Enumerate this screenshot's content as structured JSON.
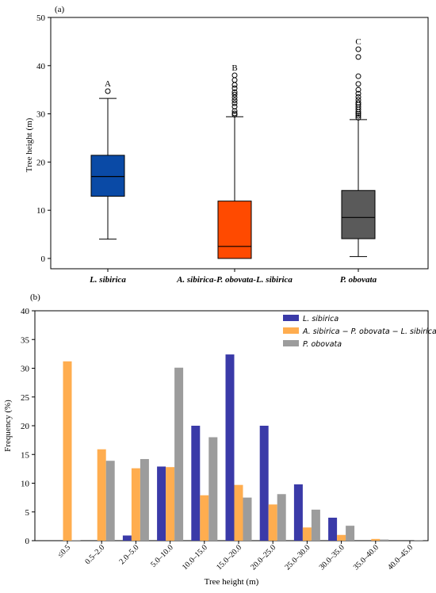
{
  "chart_data": [
    {
      "type": "box",
      "panel_label": "(a)",
      "ylabel": "Tree height (m)",
      "ylim": [
        0,
        50
      ],
      "yticks": [
        0,
        10,
        20,
        30,
        40,
        50
      ],
      "categories": [
        "L. sibirica",
        "A. sibirica-P. obovata-L. sibirica",
        "P. obovata"
      ],
      "letters": [
        "A",
        "B",
        "C"
      ],
      "boxes": [
        {
          "category": "L. sibirica",
          "color": "#0a4aa6",
          "whisker_low": 4.0,
          "q1": 12.9,
          "median": 17.0,
          "q3": 21.4,
          "whisker_high": 33.2,
          "outliers": [
            34.7
          ]
        },
        {
          "category": "A. sibirica-P. obovata-L. sibirica",
          "color": "#ff4a00",
          "whisker_low": 0.0,
          "q1": 0.0,
          "median": 2.5,
          "q3": 11.9,
          "whisker_high": 29.4,
          "outliers": [
            29.8,
            30.1,
            30.6,
            31.5,
            32.2,
            32.8,
            33.4,
            34.0,
            34.5,
            35.3,
            36.0,
            37.0,
            38.0
          ]
        },
        {
          "category": "P. obovata",
          "color": "#5a5a5a",
          "whisker_low": 0.4,
          "q1": 4.1,
          "median": 8.5,
          "q3": 14.1,
          "whisker_high": 28.8,
          "outliers": [
            29.2,
            29.6,
            30.0,
            30.4,
            30.9,
            31.4,
            31.9,
            32.3,
            32.9,
            33.5,
            34.2,
            35.0,
            36.2,
            37.8,
            41.8,
            43.4
          ]
        }
      ]
    },
    {
      "type": "bar",
      "panel_label": "(b)",
      "xlabel": "Tree height (m)",
      "ylabel": "Frequency (%)",
      "ylim": [
        0,
        40
      ],
      "yticks": [
        0,
        5,
        10,
        15,
        20,
        25,
        30,
        35,
        40
      ],
      "categories": [
        "≤0.5",
        "0.5–2.0",
        "2.0–5.0",
        "5.0–10.0",
        "10.0–15.0",
        "15.0–20.0",
        "20.0–25.0",
        "25.0–30.0",
        "30.0–35.0",
        "35.0–40.0",
        "40.0–45.0"
      ],
      "legend_position": "top-right",
      "series": [
        {
          "name": "L. sibirica",
          "color": "#3a3aa8",
          "values": [
            0,
            0,
            0.9,
            12.9,
            20.0,
            32.4,
            20.0,
            9.8,
            4.0,
            0,
            0
          ]
        },
        {
          "name": "A. sibirica − P. obovata − L. sibirica",
          "color": "#ffad4f",
          "values": [
            31.2,
            15.9,
            12.6,
            12.8,
            7.9,
            9.7,
            6.3,
            2.3,
            1.0,
            0.3,
            0
          ]
        },
        {
          "name": "P. obovata",
          "color": "#9c9c9c",
          "values": [
            0.1,
            13.9,
            14.2,
            30.1,
            18.0,
            7.5,
            8.1,
            5.4,
            2.6,
            0.2,
            0.1
          ]
        }
      ]
    }
  ]
}
